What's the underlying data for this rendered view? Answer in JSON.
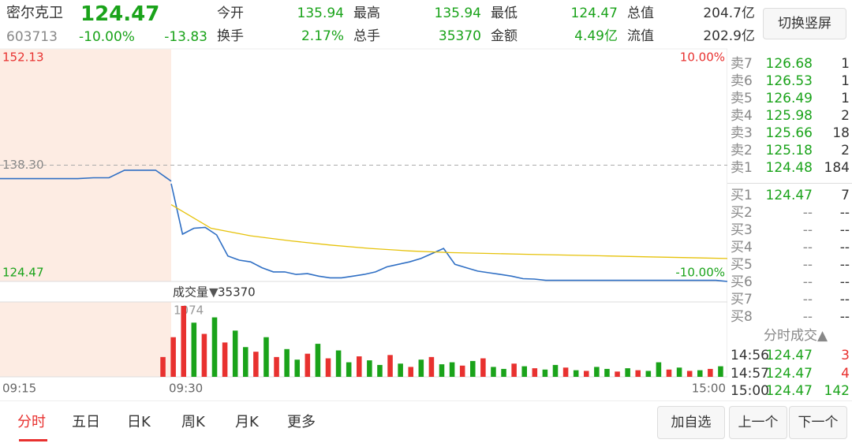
{
  "header": {
    "name": "密尔克卫",
    "price": "124.47",
    "code": "603713",
    "pct": "-10.00%",
    "change": "-13.83",
    "fields": [
      {
        "label": "今开",
        "value": "135.94"
      },
      {
        "label": "最高",
        "value": "135.94"
      },
      {
        "label": "最低",
        "value": "124.47"
      },
      {
        "label": "总值",
        "value": "204.7亿"
      },
      {
        "label": "换手",
        "value": "2.17%"
      },
      {
        "label": "总手",
        "value": "35370"
      },
      {
        "label": "金额",
        "value": "4.49亿"
      },
      {
        "label": "流值",
        "value": "202.9亿"
      }
    ],
    "button": "切换竖屏"
  },
  "chart_data": [
    {
      "type": "line",
      "ylim": [
        124.47,
        152.13
      ],
      "yticks": [
        152.13,
        {
          "value": 138.3,
          "label": "138.30"
        },
        124.47
      ],
      "y2lim": [
        -10,
        10
      ],
      "y2ticks": [
        {
          "value": 10,
          "label": "10.00%"
        },
        {
          "value": -10,
          "label": "-10.00%"
        }
      ],
      "xticks": [
        "09:15",
        "09:30",
        "15:00"
      ],
      "series": [
        {
          "color": "#2f6fc4",
          "values": [
            136.7,
            136.7,
            136.7,
            136.7,
            136.7,
            136.7,
            136.8,
            136.8,
            137.7,
            137.7,
            137.7,
            136.4
          ]
        },
        {
          "color": "#2f6fc4",
          "values": [
            136.1,
            130.1,
            130.8,
            130.9,
            130.0,
            127.5,
            127.0,
            126.8,
            126.1,
            125.6,
            125.6,
            125.3,
            125.4,
            125.1,
            124.9,
            124.9,
            125.1,
            125.3,
            125.6,
            126.2,
            126.5,
            126.8,
            127.2,
            127.8,
            128.4,
            126.5,
            126.1,
            125.7,
            125.5,
            125.3,
            125.1,
            124.8,
            124.75,
            124.6,
            124.6,
            124.6,
            124.6,
            124.6,
            124.6,
            124.6,
            124.6,
            124.6,
            124.6,
            124.6,
            124.6,
            124.6,
            124.6,
            124.6,
            124.6,
            124.47
          ]
        },
        {
          "color": "#e6c20a",
          "values": [
            133.6,
            130.8,
            129.9,
            129.3,
            128.8,
            128.4,
            128.1,
            127.9,
            127.8,
            127.7,
            127.6,
            127.5,
            127.4,
            127.3,
            127.2
          ]
        }
      ]
    },
    {
      "type": "bar",
      "label": "成交量",
      "total": "35370",
      "ylim": [
        0,
        1074
      ],
      "yticks": [
        1074
      ],
      "values": [
        300,
        600,
        1074,
        820,
        650,
        900,
        520,
        700,
        450,
        380,
        600,
        300,
        420,
        260,
        350,
        500,
        280,
        400,
        220,
        310,
        250,
        180,
        330,
        200,
        150,
        260,
        300,
        190,
        220,
        170,
        240,
        280,
        150,
        120,
        200,
        160,
        130,
        110,
        180,
        140,
        100,
        90,
        150,
        120,
        80,
        130,
        100,
        90,
        220,
        110,
        140,
        90,
        100,
        120,
        160
      ],
      "colors": [
        "#e8312f",
        "#e8312f",
        "#e8312f",
        "#1aa31a",
        "#e8312f",
        "#1aa31a",
        "#e8312f",
        "#1aa31a",
        "#1aa31a",
        "#e8312f",
        "#1aa31a",
        "#e8312f",
        "#1aa31a",
        "#1aa31a",
        "#e8312f",
        "#1aa31a",
        "#e8312f",
        "#1aa31a",
        "#1aa31a",
        "#e8312f",
        "#1aa31a",
        "#1aa31a",
        "#e8312f",
        "#1aa31a",
        "#e8312f",
        "#1aa31a",
        "#e8312f",
        "#1aa31a",
        "#1aa31a",
        "#e8312f",
        "#1aa31a",
        "#e8312f",
        "#1aa31a",
        "#1aa31a",
        "#e8312f",
        "#1aa31a",
        "#e8312f",
        "#1aa31a",
        "#1aa31a",
        "#e8312f",
        "#1aa31a",
        "#e8312f",
        "#1aa31a",
        "#1aa31a",
        "#e8312f",
        "#1aa31a",
        "#e8312f",
        "#1aa31a",
        "#1aa31a",
        "#e8312f",
        "#1aa31a",
        "#e8312f",
        "#1aa31a",
        "#e8312f",
        "#1aa31a"
      ]
    }
  ],
  "orderbook": {
    "sell": [
      {
        "label": "卖7",
        "price": "126.68",
        "vol": "1"
      },
      {
        "label": "卖6",
        "price": "126.53",
        "vol": "1"
      },
      {
        "label": "卖5",
        "price": "126.49",
        "vol": "1"
      },
      {
        "label": "卖4",
        "price": "125.98",
        "vol": "2"
      },
      {
        "label": "卖3",
        "price": "125.66",
        "vol": "18"
      },
      {
        "label": "卖2",
        "price": "125.18",
        "vol": "2"
      },
      {
        "label": "卖1",
        "price": "124.48",
        "vol": "184"
      }
    ],
    "buy": [
      {
        "label": "买1",
        "price": "124.47",
        "vol": "7"
      },
      {
        "label": "买2",
        "price": "--",
        "vol": "--"
      },
      {
        "label": "买3",
        "price": "--",
        "vol": "--"
      },
      {
        "label": "买4",
        "price": "--",
        "vol": "--"
      },
      {
        "label": "买5",
        "price": "--",
        "vol": "--"
      },
      {
        "label": "买6",
        "price": "--",
        "vol": "--"
      },
      {
        "label": "买7",
        "price": "--",
        "vol": "--"
      },
      {
        "label": "买8",
        "price": "--",
        "vol": "--"
      }
    ]
  },
  "trades": {
    "title": "分时成交▲",
    "rows": [
      {
        "time": "14:56",
        "price": "124.47",
        "vol": "3",
        "color": "#e8312f"
      },
      {
        "time": "14:57",
        "price": "124.47",
        "vol": "4",
        "color": "#e8312f"
      },
      {
        "time": "15:00",
        "price": "124.47",
        "vol": "142",
        "color": "#1aa31a"
      }
    ]
  },
  "tabs": [
    "分时",
    "五日",
    "日K",
    "周K",
    "月K",
    "更多"
  ],
  "buttons": [
    "加自选",
    "上一个",
    "下一个"
  ]
}
